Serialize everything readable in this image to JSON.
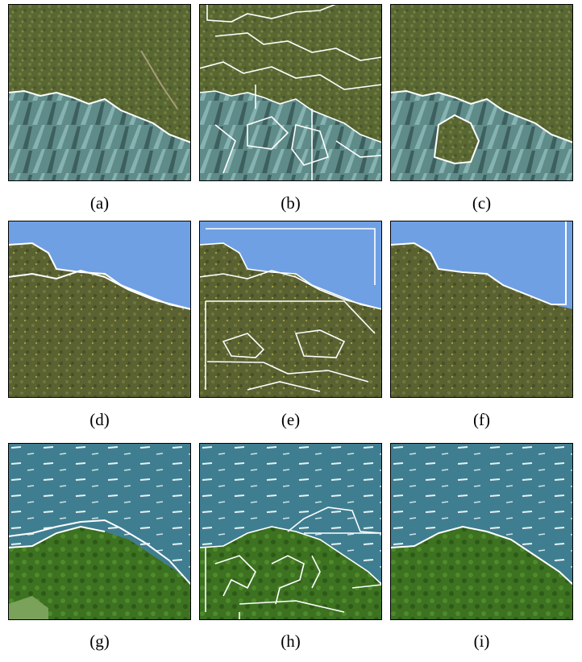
{
  "panels": [
    {
      "caption": "(a)",
      "scene": "agave-hillside",
      "segmentation": "two-region"
    },
    {
      "caption": "(b)",
      "scene": "agave-hillside",
      "segmentation": "over-segmented"
    },
    {
      "caption": "(c)",
      "scene": "agave-hillside",
      "segmentation": "refined"
    },
    {
      "caption": "(d)",
      "scene": "sky-grass",
      "segmentation": "two-region"
    },
    {
      "caption": "(e)",
      "scene": "sky-grass",
      "segmentation": "over-segmented"
    },
    {
      "caption": "(f)",
      "scene": "sky-grass",
      "segmentation": "refined"
    },
    {
      "caption": "(g)",
      "scene": "sea-bushes",
      "segmentation": "two-region"
    },
    {
      "caption": "(h)",
      "scene": "sea-bushes",
      "segmentation": "over-segmented"
    },
    {
      "caption": "(i)",
      "scene": "sea-bushes",
      "segmentation": "refined"
    }
  ],
  "colors": {
    "boundary": "#ffffff",
    "frame": "#000000",
    "grass": "#5b6a34",
    "agave": "#6e9a98",
    "sky": "#6fa0e4",
    "sea": "#3f7e90",
    "bush": "#3f7a22"
  }
}
